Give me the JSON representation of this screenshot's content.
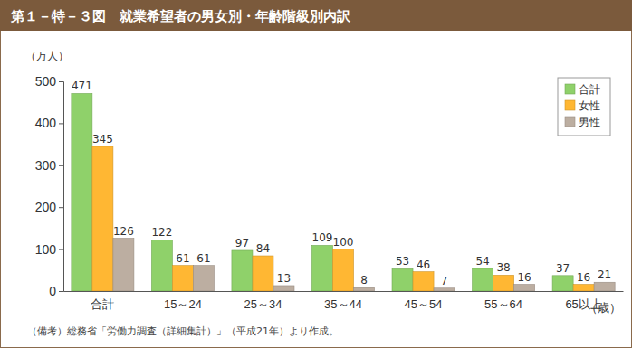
{
  "chart_data": {
    "type": "bar",
    "title": "第１－特－３図　就業希望者の男女別・年齢階級別内訳",
    "ylabel": "（万人）",
    "xlabel": "（歳）",
    "note": "（備考）総務省「労働力調査（詳細集計）」（平成21年）より作成。",
    "categories": [
      "合計",
      "15～24",
      "25～34",
      "35～44",
      "45～54",
      "55～64",
      "65以上"
    ],
    "series": [
      {
        "name": "合計",
        "color": "#8fd16a",
        "values": [
          471,
          122,
          97,
          109,
          53,
          54,
          37
        ]
      },
      {
        "name": "女性",
        "color": "#ffb733",
        "values": [
          345,
          61,
          84,
          100,
          46,
          38,
          16
        ]
      },
      {
        "name": "男性",
        "color": "#bcaea1",
        "values": [
          126,
          61,
          13,
          8,
          7,
          16,
          21
        ]
      }
    ],
    "ylim": [
      0,
      500
    ],
    "yticks": [
      0,
      100,
      200,
      300,
      400,
      500
    ],
    "grid": false,
    "legend": "top-right",
    "data_labels": true
  }
}
